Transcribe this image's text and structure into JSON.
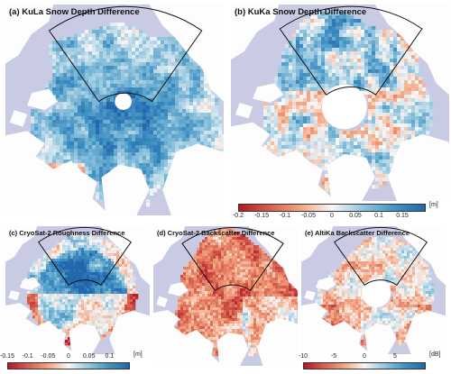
{
  "colors": {
    "background": "#c8cbe3",
    "land": "#ffffff",
    "strong_red": "#b2182b",
    "red": "#d6604d",
    "light_red": "#f4a582",
    "neutral": "#f7f7f7",
    "light_blue": "#92c5de",
    "blue": "#4393c3",
    "strong_blue": "#2166ac"
  },
  "panels": [
    {
      "id": "a",
      "title": "(a) KuLa Snow Depth Difference",
      "variable": "snow depth difference",
      "units": "m",
      "pattern": "mostly positive (blue), strongest in central Arctic sector",
      "pole_hole": false,
      "sector_outline": true
    },
    {
      "id": "b",
      "title": "(b) KuKa Snow Depth Difference",
      "variable": "snow depth difference",
      "units": "m",
      "pattern": "mixed, near zero with blue patches",
      "pole_hole": true,
      "sector_outline": true
    },
    {
      "id": "c",
      "title": "(c) CryoSat-2 Roughness Difference",
      "variable": "roughness difference",
      "units": "m",
      "pattern": "positive (blue) in central Arctic, red near coasts",
      "pole_hole": false,
      "sector_outline": true
    },
    {
      "id": "d",
      "title": "(d) CryoSat-2 Backscatter Difference",
      "variable": "backscatter difference",
      "units": "dB",
      "pattern": "mostly negative (red)",
      "pole_hole": false,
      "sector_outline": true
    },
    {
      "id": "e",
      "title": "(e) AltiKa Backscatter Difference",
      "variable": "backscatter difference",
      "units": "dB",
      "pattern": "mixed, mostly near zero",
      "pole_hole": true,
      "sector_outline": true
    }
  ],
  "colorbars": [
    {
      "id": "snow",
      "applies_to": [
        "a",
        "b"
      ],
      "ticks": [
        "-0.2",
        "-0.15",
        "-0.1",
        "-0.05",
        "0",
        "0.05",
        "0.1",
        "0.15"
      ],
      "tick_values": [
        -0.2,
        -0.15,
        -0.1,
        -0.05,
        0,
        0.05,
        0.1,
        0.15
      ],
      "range": [
        -0.2,
        0.2
      ],
      "unit": "[m]"
    },
    {
      "id": "roughness",
      "applies_to": [
        "c"
      ],
      "ticks": [
        "-0.15",
        "-0.1",
        "-0.05",
        "0",
        "0.05",
        "0.1"
      ],
      "tick_values": [
        -0.15,
        -0.1,
        -0.05,
        0,
        0.05,
        0.1
      ],
      "range": [
        -0.15,
        0.15
      ],
      "unit": "[m]"
    },
    {
      "id": "backscatter",
      "applies_to": [
        "d",
        "e"
      ],
      "ticks": [
        "-10",
        "-5",
        "0",
        "5"
      ],
      "tick_values": [
        -10,
        -5,
        0,
        5
      ],
      "range": [
        -10,
        10
      ],
      "unit": "[dB]"
    }
  ]
}
